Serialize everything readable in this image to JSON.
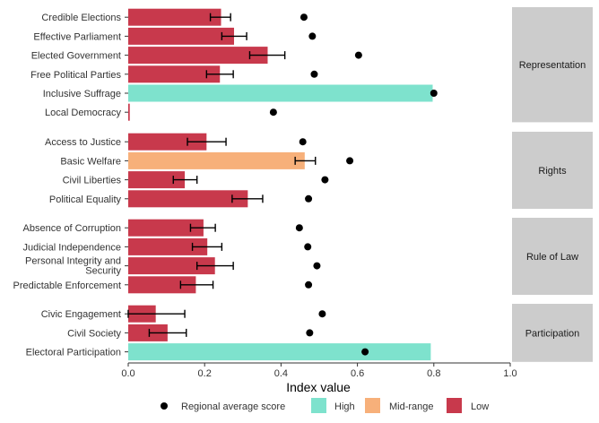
{
  "chart_data": {
    "type": "bar",
    "orientation": "horizontal",
    "xlabel": "Index value",
    "ylabel": "",
    "xlim": [
      0,
      1
    ],
    "xticks": [
      "0.0",
      "0.2",
      "0.4",
      "0.6",
      "0.8",
      "1.0"
    ],
    "grid": false,
    "legend_position": "bottom",
    "legend": [
      {
        "key": "regional",
        "label": "Regional average score",
        "symbol": "point",
        "color": "#000000"
      },
      {
        "key": "high",
        "label": "High",
        "symbol": "box",
        "color": "#7ee2cd"
      },
      {
        "key": "mid",
        "label": "Mid-range",
        "symbol": "box",
        "color": "#f7b07a"
      },
      {
        "key": "low",
        "label": "Low",
        "symbol": "box",
        "color": "#c8394c"
      }
    ],
    "colors": {
      "high": "#7ee2cd",
      "mid": "#f7b07a",
      "low": "#c8394c",
      "strip": "#cccccc"
    },
    "panels": [
      {
        "name": "Representation",
        "items": [
          {
            "label": "Credible Elections",
            "value": 0.243,
            "err_low": 0.215,
            "err_high": 0.268,
            "regional": 0.46,
            "level": "low"
          },
          {
            "label": "Effective Parliament",
            "value": 0.277,
            "err_low": 0.245,
            "err_high": 0.31,
            "regional": 0.482,
            "level": "low"
          },
          {
            "label": "Elected Government",
            "value": 0.365,
            "err_low": 0.318,
            "err_high": 0.41,
            "regional": 0.603,
            "level": "low"
          },
          {
            "label": "Free Political Parties",
            "value": 0.24,
            "err_low": 0.205,
            "err_high": 0.275,
            "regional": 0.487,
            "level": "low"
          },
          {
            "label": "Inclusive Suffrage",
            "value": 0.797,
            "err_low": null,
            "err_high": null,
            "regional": 0.8,
            "level": "high"
          },
          {
            "label": "Local Democracy",
            "value": 0.004,
            "err_low": null,
            "err_high": null,
            "regional": 0.38,
            "level": "low"
          }
        ]
      },
      {
        "name": "Rights",
        "items": [
          {
            "label": "Access to Justice",
            "value": 0.205,
            "err_low": 0.155,
            "err_high": 0.256,
            "regional": 0.457,
            "level": "low"
          },
          {
            "label": "Basic Welfare",
            "value": 0.462,
            "err_low": 0.437,
            "err_high": 0.49,
            "regional": 0.58,
            "level": "mid"
          },
          {
            "label": "Civil Liberties",
            "value": 0.148,
            "err_low": 0.118,
            "err_high": 0.18,
            "regional": 0.515,
            "level": "low"
          },
          {
            "label": "Political Equality",
            "value": 0.313,
            "err_low": 0.272,
            "err_high": 0.352,
            "regional": 0.472,
            "level": "low"
          }
        ]
      },
      {
        "name": "Rule of Law",
        "items": [
          {
            "label": "Absence of Corruption",
            "value": 0.197,
            "err_low": 0.163,
            "err_high": 0.228,
            "regional": 0.448,
            "level": "low"
          },
          {
            "label": "Judicial Independence",
            "value": 0.207,
            "err_low": 0.168,
            "err_high": 0.245,
            "regional": 0.47,
            "level": "low"
          },
          {
            "label": "Personal Integrity and\nSecurity",
            "value": 0.227,
            "err_low": 0.18,
            "err_high": 0.275,
            "regional": 0.494,
            "level": "low"
          },
          {
            "label": "Predictable Enforcement",
            "value": 0.177,
            "err_low": 0.137,
            "err_high": 0.222,
            "regional": 0.472,
            "level": "low"
          }
        ]
      },
      {
        "name": "Participation",
        "items": [
          {
            "label": "Civic Engagement",
            "value": 0.072,
            "err_low": 0.0,
            "err_high": 0.148,
            "regional": 0.508,
            "level": "low"
          },
          {
            "label": "Civil Society",
            "value": 0.103,
            "err_low": 0.055,
            "err_high": 0.152,
            "regional": 0.475,
            "level": "low"
          },
          {
            "label": "Electoral Participation",
            "value": 0.792,
            "err_low": null,
            "err_high": null,
            "regional": 0.62,
            "level": "high"
          }
        ]
      }
    ]
  }
}
